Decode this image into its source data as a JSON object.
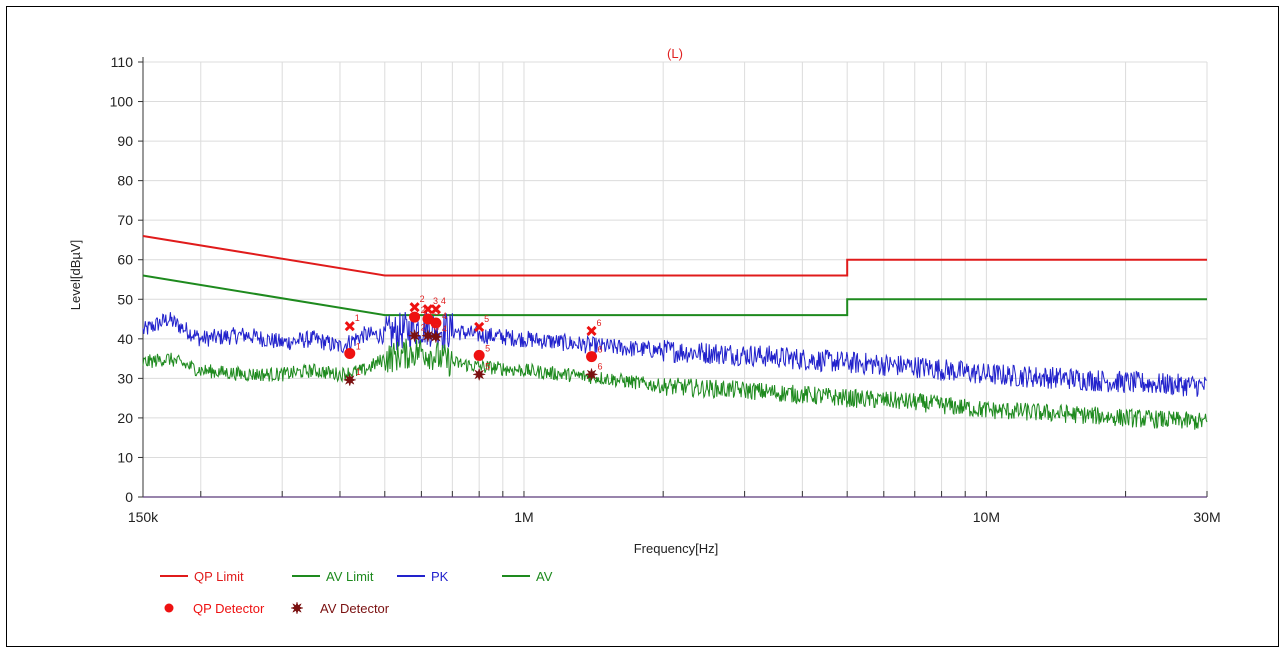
{
  "chart_data": {
    "type": "line",
    "title": "(L)",
    "xlabel": "Frequency[Hz]",
    "ylabel": "Level[dBµV]",
    "xscale": "log",
    "xlim": [
      150000,
      30000000
    ],
    "ylim": [
      0,
      110
    ],
    "y_ticks": [
      0,
      10,
      20,
      30,
      40,
      50,
      60,
      70,
      80,
      90,
      100,
      110
    ],
    "x_tick_labels": [
      {
        "value": 150000,
        "label": "150k"
      },
      {
        "value": 1000000,
        "label": "1M"
      },
      {
        "value": 10000000,
        "label": "10M"
      },
      {
        "value": 30000000,
        "label": "30M"
      }
    ],
    "grid": true,
    "colors": {
      "qp_limit": "#e01b1b",
      "av_limit": "#1e8a1e",
      "pk": "#2222cc",
      "av": "#1e8a1e",
      "qp_detector": "#ee1111",
      "av_detector": "#7a1010",
      "title": "#e02020"
    },
    "series": [
      {
        "name": "QP Limit",
        "kind": "limit",
        "points": [
          [
            150000,
            66
          ],
          [
            500000,
            56
          ],
          [
            5000000,
            56
          ],
          [
            5000000,
            60
          ],
          [
            30000000,
            60
          ]
        ]
      },
      {
        "name": "AV Limit",
        "kind": "limit",
        "points": [
          [
            150000,
            56
          ],
          [
            500000,
            46
          ],
          [
            5000000,
            46
          ],
          [
            5000000,
            50
          ],
          [
            30000000,
            50
          ]
        ]
      },
      {
        "name": "PK",
        "kind": "trace",
        "points": [
          [
            150000,
            42
          ],
          [
            170000,
            45
          ],
          [
            200000,
            40
          ],
          [
            250000,
            41
          ],
          [
            300000,
            39
          ],
          [
            350000,
            40
          ],
          [
            400000,
            38
          ],
          [
            450000,
            41
          ],
          [
            500000,
            41
          ],
          [
            600000,
            43
          ],
          [
            700000,
            42
          ],
          [
            800000,
            41
          ],
          [
            1000000,
            40
          ],
          [
            1500000,
            38
          ],
          [
            2000000,
            37
          ],
          [
            3000000,
            36
          ],
          [
            5000000,
            34
          ],
          [
            7000000,
            33
          ],
          [
            10000000,
            31
          ],
          [
            15000000,
            30
          ],
          [
            20000000,
            29
          ],
          [
            30000000,
            28
          ]
        ]
      },
      {
        "name": "AV",
        "kind": "trace",
        "points": [
          [
            150000,
            34
          ],
          [
            170000,
            35
          ],
          [
            200000,
            32
          ],
          [
            250000,
            31
          ],
          [
            300000,
            31
          ],
          [
            350000,
            32
          ],
          [
            400000,
            31
          ],
          [
            450000,
            32
          ],
          [
            500000,
            35
          ],
          [
            600000,
            37
          ],
          [
            700000,
            34
          ],
          [
            800000,
            33
          ],
          [
            1000000,
            32
          ],
          [
            1500000,
            30
          ],
          [
            2000000,
            28
          ],
          [
            3000000,
            27
          ],
          [
            5000000,
            25
          ],
          [
            7000000,
            24
          ],
          [
            10000000,
            22
          ],
          [
            15000000,
            21
          ],
          [
            20000000,
            20
          ],
          [
            30000000,
            19
          ]
        ]
      }
    ],
    "markers": {
      "qp_limit_hits": [
        {
          "label": "1",
          "f": 420000,
          "level": 43.2
        },
        {
          "label": "2",
          "f": 580000,
          "level": 48.0
        },
        {
          "label": "3",
          "f": 620000,
          "level": 47.5
        },
        {
          "label": "4",
          "f": 645000,
          "level": 47.5
        },
        {
          "label": "5",
          "f": 800000,
          "level": 43.0
        },
        {
          "label": "6",
          "f": 1400000,
          "level": 42.0
        }
      ],
      "qp_detector": [
        {
          "label": "1",
          "f": 420000,
          "level": 36.3
        },
        {
          "label": "2",
          "f": 580000,
          "level": 45.5
        },
        {
          "label": "3",
          "f": 620000,
          "level": 45.0
        },
        {
          "label": "4",
          "f": 645000,
          "level": 44.0
        },
        {
          "label": "5",
          "f": 800000,
          "level": 35.8
        },
        {
          "label": "6",
          "f": 1400000,
          "level": 35.5
        }
      ],
      "av_detector": [
        {
          "label": "1",
          "f": 420000,
          "level": 29.6
        },
        {
          "label": "2",
          "f": 580000,
          "level": 40.8
        },
        {
          "label": "3",
          "f": 620000,
          "level": 40.8
        },
        {
          "label": "4",
          "f": 645000,
          "level": 40.5
        },
        {
          "label": "5",
          "f": 800000,
          "level": 31.0
        },
        {
          "label": "6",
          "f": 1400000,
          "level": 31.0
        }
      ]
    },
    "legend": {
      "placement": "bottom-left",
      "rows": [
        [
          {
            "label": "QP Limit",
            "symbol": "line",
            "color": "#e01b1b"
          },
          {
            "label": "AV Limit",
            "symbol": "line",
            "color": "#1e8a1e"
          },
          {
            "label": "PK",
            "symbol": "line",
            "color": "#2222cc"
          },
          {
            "label": "AV",
            "symbol": "line",
            "color": "#1e8a1e"
          }
        ],
        [
          {
            "label": "QP Detector",
            "symbol": "dot",
            "color": "#ee1111"
          },
          {
            "label": "AV Detector",
            "symbol": "star",
            "color": "#7a1010"
          }
        ]
      ]
    }
  }
}
